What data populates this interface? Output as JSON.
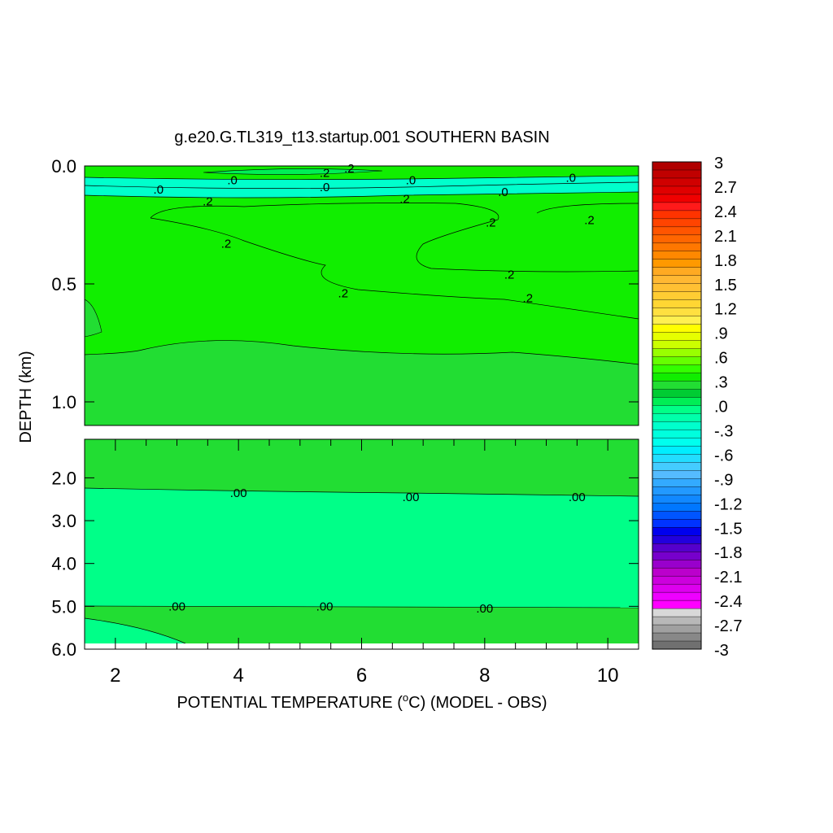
{
  "chart_data": {
    "type": "contour",
    "title": "g.e20.G.TL319_t13.startup.001 SOUTHERN BASIN",
    "xlabel": "POTENTIAL TEMPERATURE (",
    "xlabel_sup": "o",
    "xlabel_tail": "C) (MODEL - OBS)",
    "ylabel": "DEPTH (km)",
    "xlim": [
      1.5,
      10.5
    ],
    "x_ticks": [
      "2",
      "4",
      "6",
      "8",
      "10"
    ],
    "upper_panel": {
      "ylim": [
        0.0,
        1.1
      ],
      "y_ticks": [
        "0.0",
        "0.5",
        "1.0"
      ],
      "contour_labels": [
        {
          "text": ".2",
          "x": 3.5,
          "y": 0.15
        },
        {
          "text": ".2",
          "x": 3.8,
          "y": 0.33
        },
        {
          "text": ".2",
          "x": 5.7,
          "y": 0.54
        },
        {
          "text": ".2",
          "x": 6.7,
          "y": 0.14
        },
        {
          "text": ".2",
          "x": 8.4,
          "y": 0.46
        },
        {
          "text": ".2",
          "x": 8.7,
          "y": 0.56
        },
        {
          "text": ".2",
          "x": 8.1,
          "y": 0.24
        },
        {
          "text": ".2",
          "x": 9.7,
          "y": 0.23
        },
        {
          "text": ".2",
          "x": 5.4,
          "y": 0.03
        },
        {
          "text": ".2",
          "x": 5.8,
          "y": 0.01
        },
        {
          "text": ".0",
          "x": 2.7,
          "y": 0.1
        },
        {
          "text": ".0",
          "x": 3.9,
          "y": 0.06
        },
        {
          "text": ".0",
          "x": 5.4,
          "y": 0.09
        },
        {
          "text": ".0",
          "x": 6.8,
          "y": 0.06
        },
        {
          "text": ".0",
          "x": 8.3,
          "y": 0.11
        },
        {
          "text": ".0",
          "x": 9.4,
          "y": 0.05
        }
      ]
    },
    "lower_panel": {
      "ylim": [
        1.1,
        6.0
      ],
      "y_ticks": [
        "2.0",
        "3.0",
        "4.0",
        "5.0",
        "6.0"
      ],
      "contour_labels": [
        {
          "text": ".00",
          "x": 4.0,
          "y": 2.35
        },
        {
          "text": ".00",
          "x": 6.8,
          "y": 2.45
        },
        {
          "text": ".00",
          "x": 9.5,
          "y": 2.45
        },
        {
          "text": ".00",
          "x": 3.0,
          "y": 5.0
        },
        {
          "text": ".00",
          "x": 5.4,
          "y": 5.0
        },
        {
          "text": ".00",
          "x": 8.0,
          "y": 5.05
        }
      ]
    },
    "colorbar": {
      "labels": [
        "3",
        "2.7",
        "2.4",
        "2.1",
        "1.8",
        "1.5",
        "1.2",
        ".9",
        ".6",
        ".3",
        ".0",
        "-.3",
        "-.6",
        "-.9",
        "-1.2",
        "-1.5",
        "-1.8",
        "-2.1",
        "-2.4",
        "-2.7",
        "-3"
      ],
      "colors": [
        "#B00000",
        "#C00000",
        "#D00000",
        "#E00000",
        "#F00000",
        "#FF1A1A",
        "#FF3300",
        "#FF4400",
        "#FF5500",
        "#FF6600",
        "#FF7700",
        "#FF8800",
        "#FF9900",
        "#FFAA22",
        "#FFB833",
        "#FFC033",
        "#FFCC33",
        "#FFD633",
        "#FFE040",
        "#FFF050",
        "#FFFF00",
        "#E6FF00",
        "#CCFF00",
        "#99FF00",
        "#66FF00",
        "#33FF00",
        "#11EE00",
        "#22DD33",
        "#00CC33",
        "#00EE55",
        "#00FF88",
        "#00FFAA",
        "#00FFCC",
        "#00FFDD",
        "#00FFEE",
        "#00EEFF",
        "#22DDFF",
        "#44CCFF",
        "#55BBFF",
        "#33AAFF",
        "#2299FF",
        "#1188FF",
        "#0077FF",
        "#0055FF",
        "#0033FF",
        "#0000EE",
        "#2200DD",
        "#5500CC",
        "#7700CC",
        "#9900CC",
        "#BB00CC",
        "#CC00DD",
        "#DD00EE",
        "#EE00FF",
        "#FF00FF",
        "#D8D8D8",
        "#B8B8B8",
        "#A0A0A0",
        "#888888",
        "#707070"
      ]
    }
  }
}
